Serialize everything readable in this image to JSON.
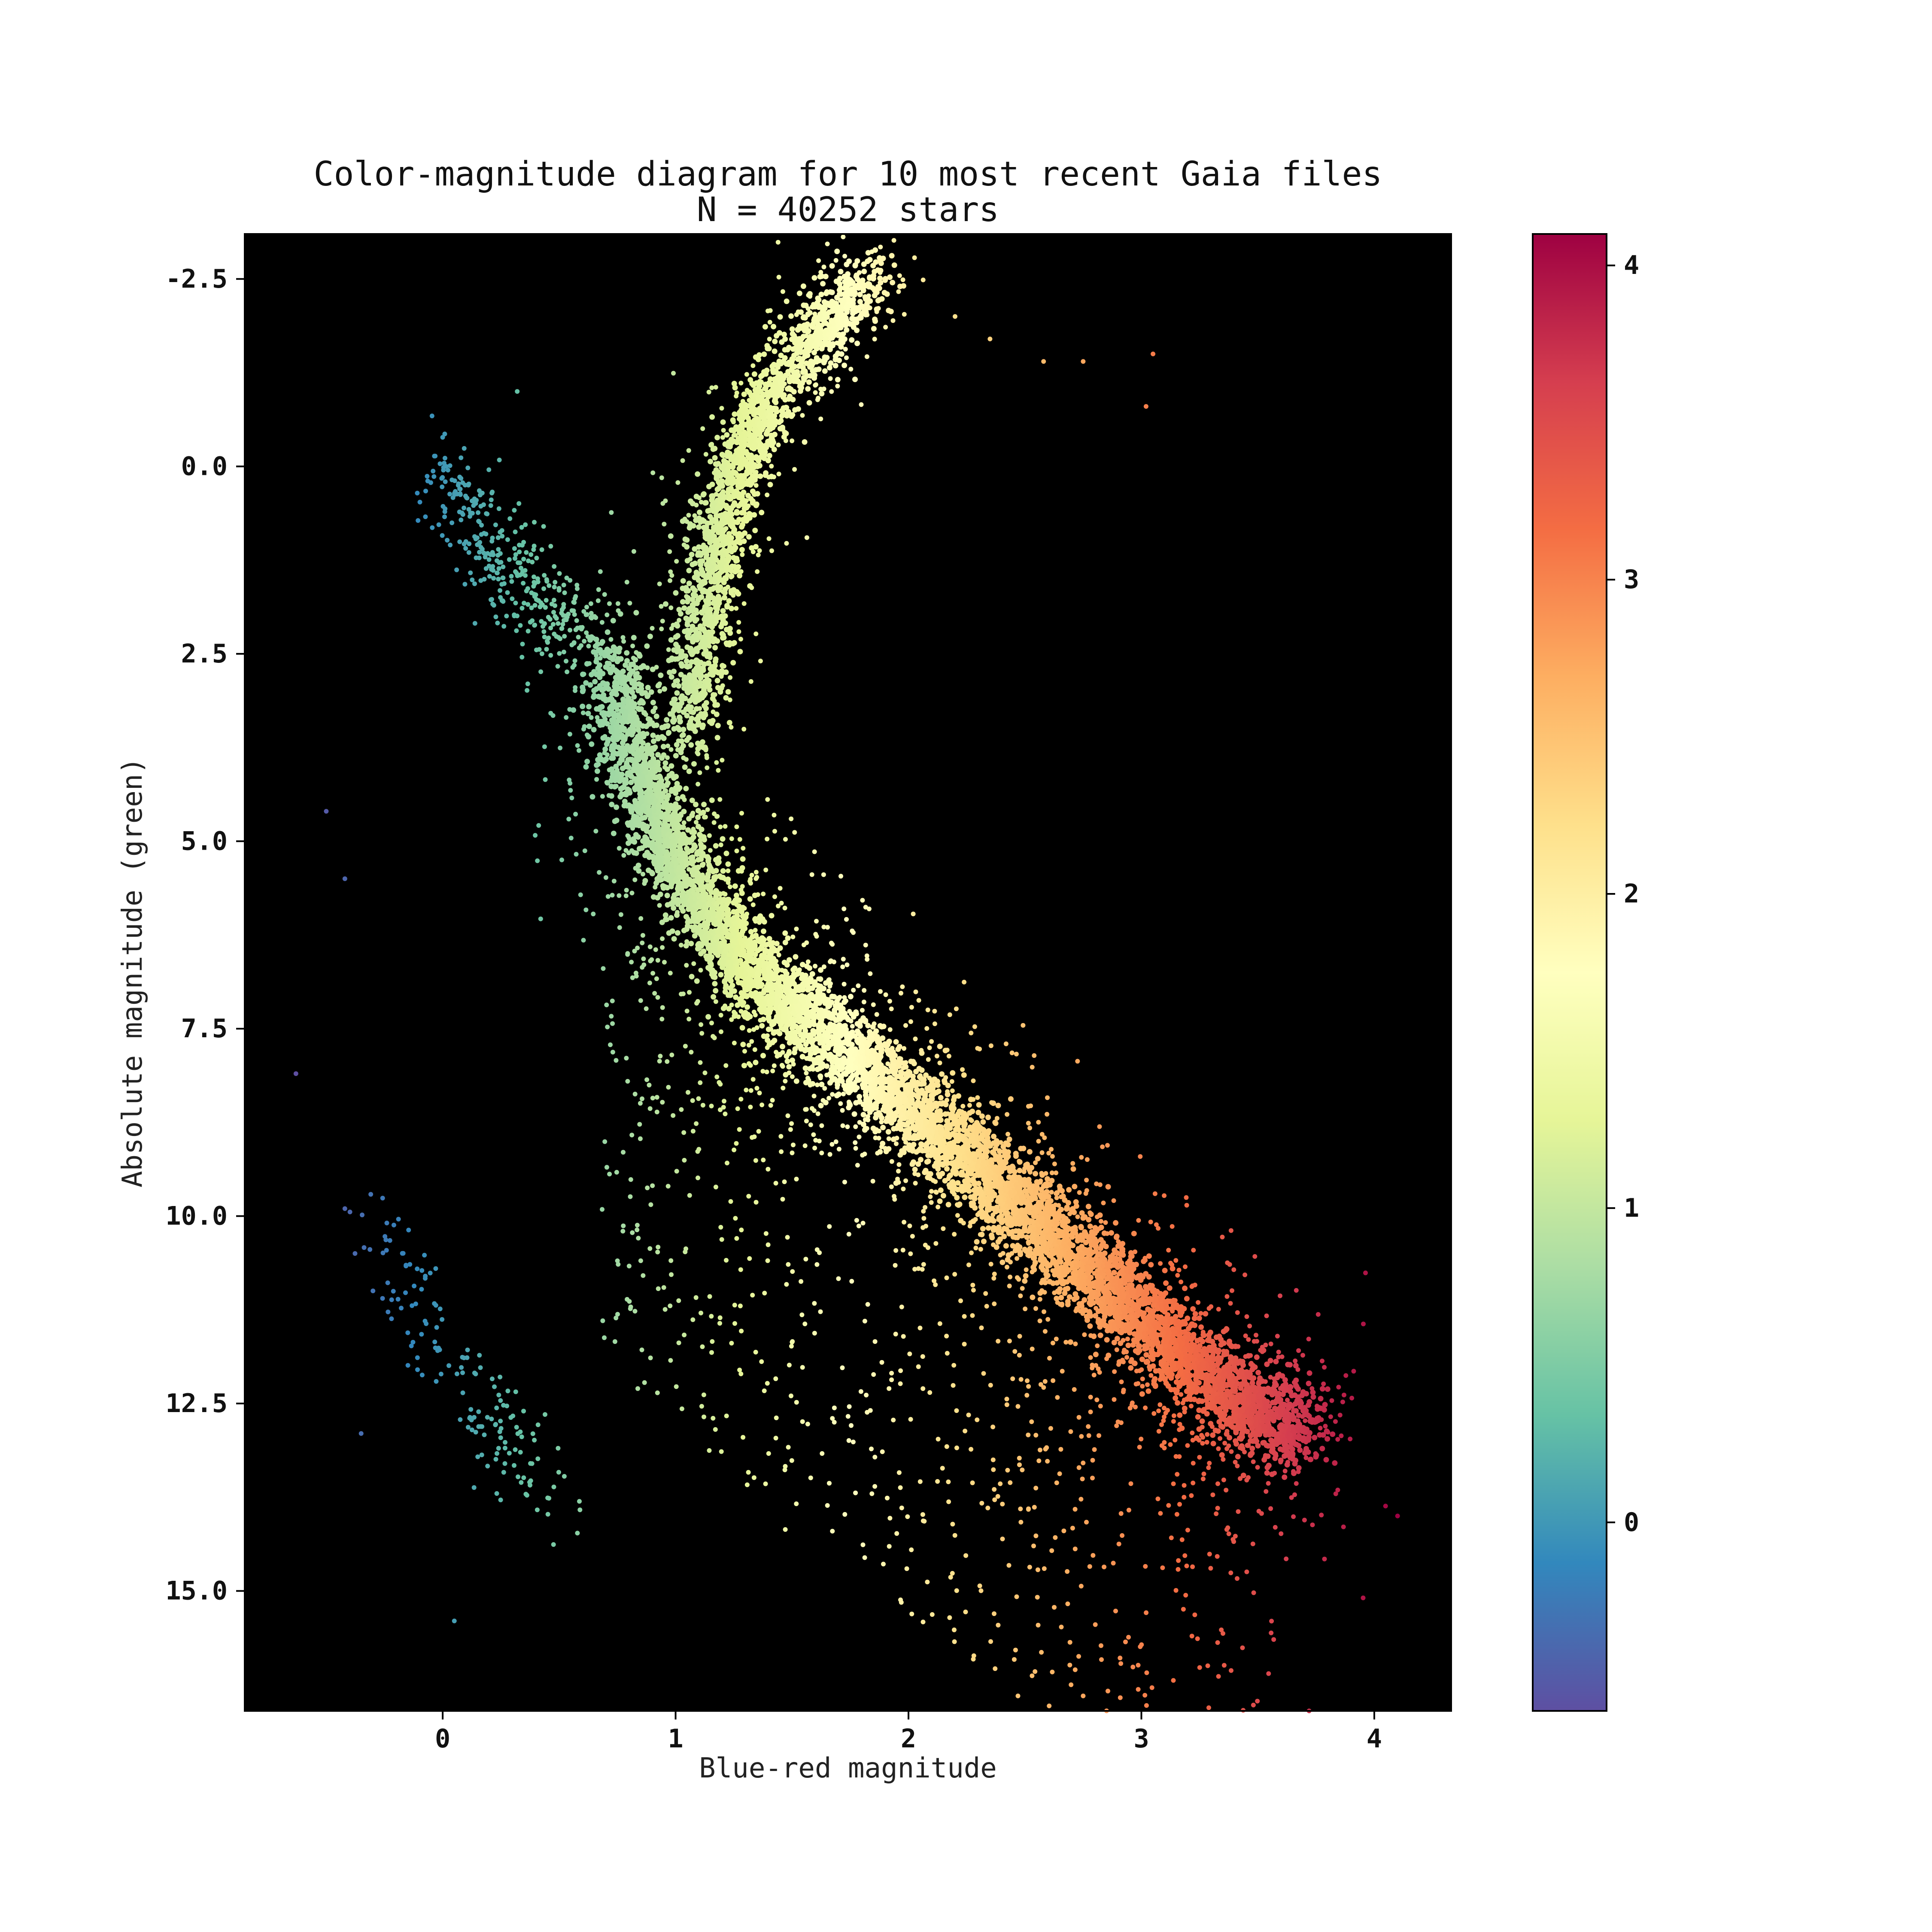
{
  "chart_data": {
    "type": "scatter",
    "title": "Color-magnitude diagram for 10 most recent Gaia files",
    "subtitle": "N = 40252 stars",
    "xlabel": "Blue-red magnitude",
    "ylabel": "Absolute magnitude (green)",
    "xlim": [
      -0.85,
      4.33
    ],
    "ylim": [
      16.6,
      -3.1
    ],
    "y_inverted": true,
    "grid": false,
    "plot_background": "#000000",
    "colormap": "Spectral_r",
    "colorbar_range": [
      -0.6,
      4.1
    ],
    "colorbar_ticks": [
      "0",
      "1",
      "2",
      "3",
      "4"
    ],
    "x_ticks": [
      "0",
      "1",
      "2",
      "3",
      "4"
    ],
    "y_ticks": [
      "-2.5",
      "0.0",
      "2.5",
      "5.0",
      "7.5",
      "10.0",
      "12.5",
      "15.0"
    ],
    "main_sequence_ridge": [
      {
        "x": 0.72,
        "y": 2.6
      },
      {
        "x": 0.85,
        "y": 4.2
      },
      {
        "x": 1.0,
        "y": 5.2
      },
      {
        "x": 1.2,
        "y": 6.3
      },
      {
        "x": 1.45,
        "y": 7.1
      },
      {
        "x": 1.7,
        "y": 7.7
      },
      {
        "x": 1.95,
        "y": 8.4
      },
      {
        "x": 2.2,
        "y": 9.1
      },
      {
        "x": 2.45,
        "y": 9.8
      },
      {
        "x": 2.7,
        "y": 10.5
      },
      {
        "x": 2.95,
        "y": 11.2
      },
      {
        "x": 3.2,
        "y": 11.9
      },
      {
        "x": 3.45,
        "y": 12.5
      },
      {
        "x": 3.7,
        "y": 12.9
      }
    ],
    "red_giant_branch": [
      {
        "x": 1.05,
        "y": 3.6
      },
      {
        "x": 1.1,
        "y": 2.5
      },
      {
        "x": 1.15,
        "y": 1.4
      },
      {
        "x": 1.22,
        "y": 0.5
      },
      {
        "x": 1.3,
        "y": -0.3
      },
      {
        "x": 1.45,
        "y": -1.1
      },
      {
        "x": 1.65,
        "y": -1.9
      },
      {
        "x": 1.85,
        "y": -2.5
      }
    ],
    "upper_branch": [
      {
        "x": 0.0,
        "y": -0.1
      },
      {
        "x": 0.1,
        "y": 0.6
      },
      {
        "x": 0.2,
        "y": 1.2
      },
      {
        "x": 0.35,
        "y": 1.6
      },
      {
        "x": 0.5,
        "y": 2.0
      },
      {
        "x": 0.65,
        "y": 2.4
      }
    ],
    "white_dwarf_sequence": [
      {
        "x": -0.3,
        "y": 10.2
      },
      {
        "x": -0.15,
        "y": 11.0
      },
      {
        "x": 0.0,
        "y": 11.8
      },
      {
        "x": 0.15,
        "y": 12.5
      },
      {
        "x": 0.3,
        "y": 13.2
      },
      {
        "x": 0.5,
        "y": 14.0
      }
    ],
    "outliers": [
      {
        "x": -0.63,
        "y": 8.1
      },
      {
        "x": -0.5,
        "y": 4.6
      },
      {
        "x": -0.42,
        "y": 5.5
      },
      {
        "x": -0.42,
        "y": 9.9
      },
      {
        "x": -0.35,
        "y": 12.9
      },
      {
        "x": 0.05,
        "y": 15.4
      },
      {
        "x": 0.32,
        "y": -1.0
      },
      {
        "x": 3.02,
        "y": -0.8
      },
      {
        "x": 3.05,
        "y": -1.5
      },
      {
        "x": 2.75,
        "y": -1.4
      },
      {
        "x": 2.58,
        "y": -1.4
      },
      {
        "x": 2.2,
        "y": -2.0
      },
      {
        "x": 2.35,
        "y": -1.7
      },
      {
        "x": 4.1,
        "y": 14.0
      },
      {
        "x": 3.72,
        "y": 16.6
      },
      {
        "x": 2.75,
        "y": 16.4
      },
      {
        "x": 2.47,
        "y": 16.4
      }
    ]
  }
}
